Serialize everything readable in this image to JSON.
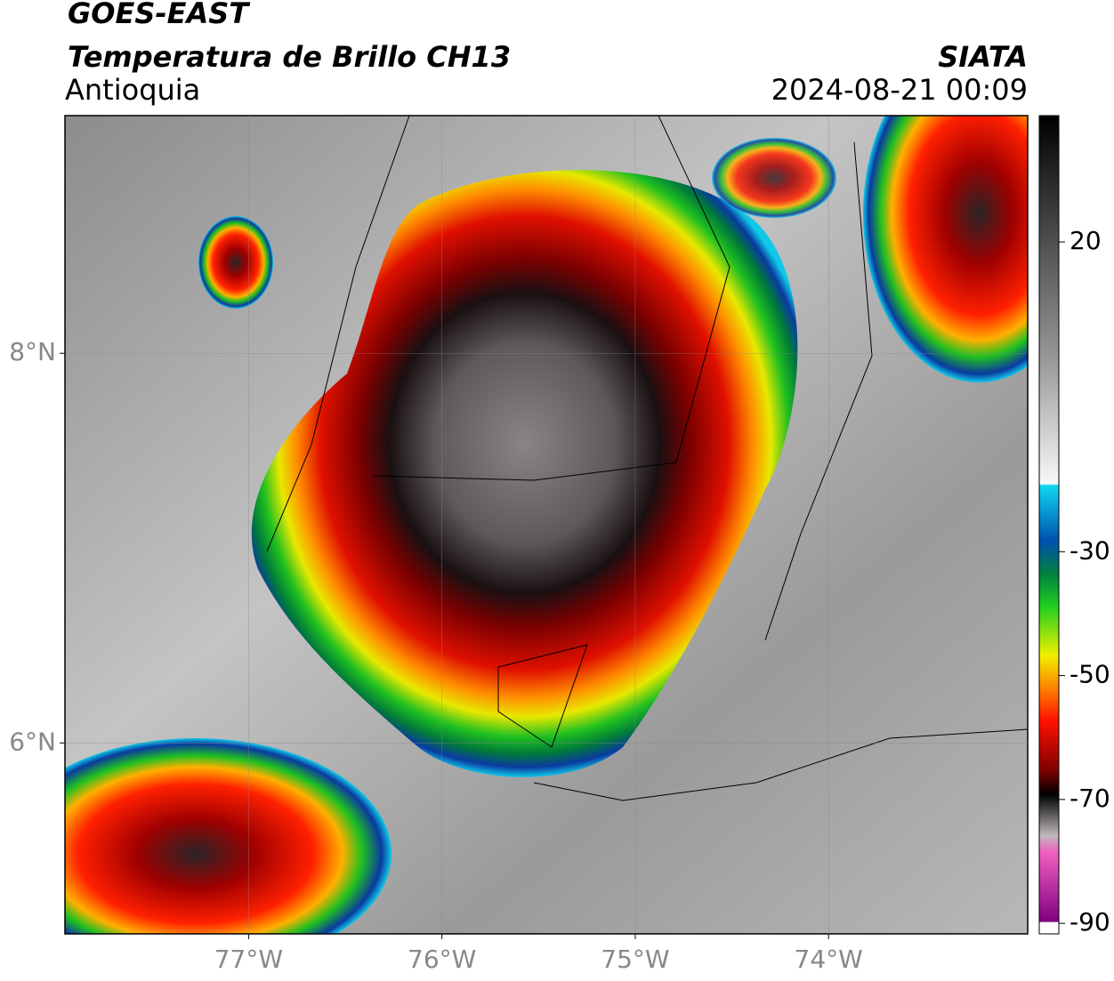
{
  "header": {
    "satellite": "GOES-EAST",
    "product": "Temperatura de Brillo CH13",
    "region": "Antioquia",
    "source": "SIATA",
    "datetime": "2024-08-21 00:09"
  },
  "map": {
    "xlim": [
      -77.95,
      -72.97
    ],
    "ylim": [
      5.02,
      9.22
    ],
    "xticks": [
      {
        "value": -77,
        "label": "77°W"
      },
      {
        "value": -76,
        "label": "76°W"
      },
      {
        "value": -75,
        "label": "75°W"
      },
      {
        "value": -74,
        "label": "74°W"
      }
    ],
    "yticks": [
      {
        "value": 6,
        "label": "6°N"
      },
      {
        "value": 8,
        "label": "8°N"
      }
    ]
  },
  "colorbar": {
    "clim": [
      -91.7,
      40.4
    ],
    "ticks": [
      20,
      -30,
      -50,
      -70,
      -90
    ]
  }
}
